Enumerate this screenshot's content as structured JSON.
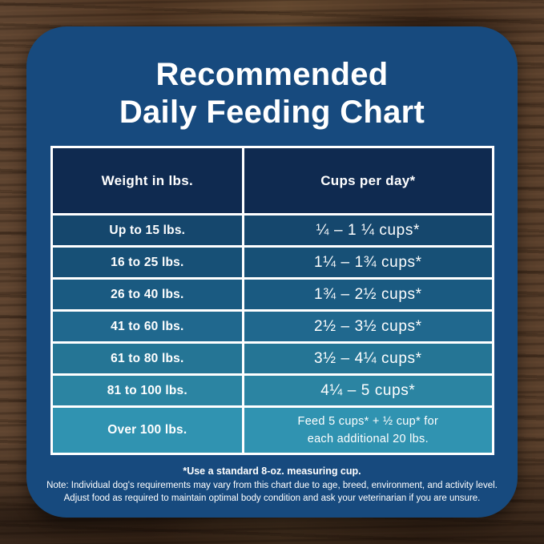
{
  "title": {
    "line1": "Recommended",
    "line2": "Daily Feeding Chart"
  },
  "table": {
    "header_weight": "Weight in lbs.",
    "header_cups": "Cups per day*",
    "rows": [
      {
        "weight": "Up to 15 lbs.",
        "cups": "¼ – 1 ¼ cups*",
        "bg": "#15476d"
      },
      {
        "weight": "16 to 25 lbs.",
        "cups": "1¼ – 1¾ cups*",
        "bg": "#175076"
      },
      {
        "weight": "26 to 40 lbs.",
        "cups": "1¾ – 2½ cups*",
        "bg": "#1a5a81"
      },
      {
        "weight": "41 to 60 lbs.",
        "cups": "2½ – 3½ cups*",
        "bg": "#20688e"
      },
      {
        "weight": "61 to 80 lbs.",
        "cups": "3½ – 4¼ cups*",
        "bg": "#257595"
      },
      {
        "weight": "81 to 100 lbs.",
        "cups": "4¼ – 5 cups*",
        "bg": "#2b84a2"
      },
      {
        "weight": "Over 100 lbs.",
        "cups_line1": "Feed 5 cups* + ½ cup* for",
        "cups_line2": "each additional 20 lbs.",
        "bg": "#3093b1"
      }
    ]
  },
  "footnotes": {
    "measuring_cup": "*Use a standard 8-oz. measuring cup.",
    "note_line1": "Note: Individual dog's requirements may vary from this chart due to age, breed, environment, and activity level.",
    "note_line2": "Adjust food as required to maintain optimal body condition and ask your veterinarian if you are unsure."
  },
  "colors": {
    "card_bg": "#174a7e",
    "header_bg": "#0f2a50",
    "table_grid": "#ffffff",
    "text": "#ffffff",
    "wood_base": "#503724"
  },
  "chart_data": {
    "type": "table",
    "title": "Recommended Daily Feeding Chart",
    "columns": [
      "Weight in lbs.",
      "Cups per day*"
    ],
    "rows": [
      [
        "Up to 15 lbs.",
        "¼ – 1 ¼ cups*"
      ],
      [
        "16 to 25 lbs.",
        "1¼ – 1¾ cups*"
      ],
      [
        "26 to 40 lbs.",
        "1¾ – 2½ cups*"
      ],
      [
        "41 to 60 lbs.",
        "2½ – 3½ cups*"
      ],
      [
        "61 to 80 lbs.",
        "3½ – 4¼ cups*"
      ],
      [
        "81 to 100 lbs.",
        "4¼ – 5 cups*"
      ],
      [
        "Over 100 lbs.",
        "Feed 5 cups* + ½ cup* for each additional 20 lbs."
      ]
    ],
    "notes": [
      "*Use a standard 8-oz. measuring cup.",
      "Note: Individual dog's requirements may vary from this chart due to age, breed, environment, and activity level.",
      "Adjust food as required to maintain optimal body condition and ask your veterinarian if you are unsure."
    ],
    "row_color_ramp": [
      "#15476d",
      "#175076",
      "#1a5a81",
      "#20688e",
      "#257595",
      "#2b84a2",
      "#3093b1"
    ]
  }
}
